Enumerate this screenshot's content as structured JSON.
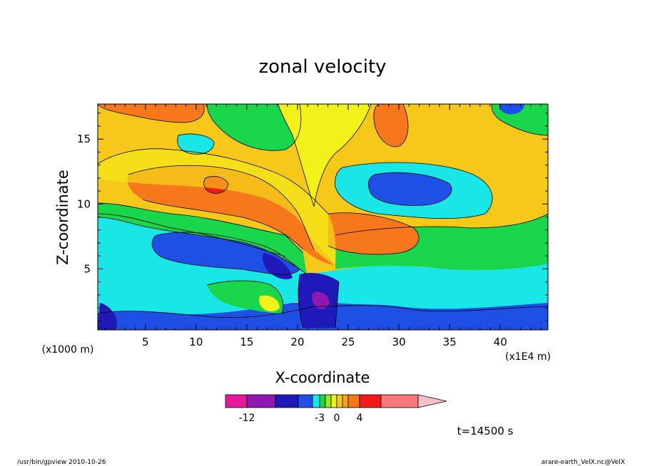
{
  "chart_data": {
    "type": "heatmap",
    "title": "zonal velocity",
    "xlabel": "X-coordinate",
    "ylabel": "Z-coordinate",
    "x_unit_left": "(x1000 m)",
    "x_unit_right": "(x1E4 m)",
    "xlim": [
      0.3,
      44.7
    ],
    "ylim": [
      0.3,
      17.7
    ],
    "x_ticks": [
      5,
      10,
      15,
      20,
      25,
      30,
      35,
      40
    ],
    "y_ticks": [
      5,
      10,
      15
    ],
    "x_tick_labels": [
      "5",
      "10",
      "15",
      "20",
      "25",
      "30",
      "35",
      "40"
    ],
    "y_tick_labels": [
      "5",
      "10",
      "15"
    ],
    "colorbar": {
      "levels": [
        -16,
        -12,
        -9,
        -6,
        -4,
        -3,
        -2,
        -1,
        0,
        1,
        2,
        4,
        6,
        10
      ],
      "colors": [
        "#e6199c",
        "#8f19b0",
        "#1e19b8",
        "#1f50e6",
        "#19e6e6",
        "#19d64a",
        "#a0e619",
        "#f2f21a",
        "#f5c81a",
        "#f5a51a",
        "#f7781a",
        "#f51a1a",
        "#f77878"
      ],
      "extend_color": "#f7c0c8",
      "tick_labels": [
        {
          "value": -12,
          "label": "-12"
        },
        {
          "value": -3,
          "label": "-3"
        },
        {
          "value": 0,
          "label": "0"
        },
        {
          "value": 4,
          "label": "4"
        }
      ]
    },
    "time_label": "t=14500 s"
  },
  "footer": {
    "left": "/usr/bin/gpview   2010-10-26",
    "right": "arare-earth_VelX.nc@VelX"
  }
}
